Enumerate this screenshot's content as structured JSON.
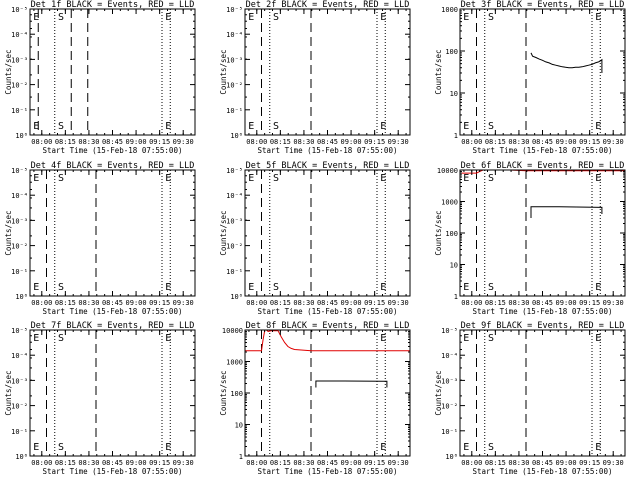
{
  "figure": {
    "background": "#ffffff",
    "x_tick_labels": [
      "08:00",
      "08:15",
      "08:30",
      "08:45",
      "09:00",
      "09:15",
      "09:30"
    ],
    "xlabel": "Start Time (15-Feb-18 07:55:00)",
    "ylabel": "Counts/sec",
    "colors": {
      "events": "#000000",
      "lld": "#e00000"
    }
  },
  "chart_data": [
    {
      "type": "line",
      "title": "Det 1f BLACK = Events, RED = LLD",
      "yscale": "log",
      "ylim": [
        1,
        10
      ],
      "xlim": [
        0,
        100
      ],
      "y_tick_labels": [
        "10⁰",
        "10⁻¹",
        "10⁻²",
        "10⁻³",
        "10⁻⁴",
        "10⁻⁵"
      ],
      "xlabel": "Start Time (15-Feb-18 07:55:00)",
      "ylabel": "Counts/sec",
      "dashed_x": [
        5,
        25,
        35
      ],
      "dotted_x": [
        15,
        80,
        85
      ],
      "markers": [
        {
          "text": "E",
          "x": 2
        },
        {
          "text": "S",
          "x": 17
        },
        {
          "text": "E",
          "x": 82
        }
      ],
      "series": []
    },
    {
      "type": "line",
      "title": "Det 2f BLACK = Events, RED = LLD",
      "yscale": "log",
      "ylim": [
        1,
        10
      ],
      "xlim": [
        0,
        100
      ],
      "y_tick_labels": [
        "10⁰",
        "10⁻¹",
        "10⁻²",
        "10⁻³",
        "10⁻⁴",
        "10⁻⁵"
      ],
      "xlabel": "Start Time (15-Feb-18 07:55:00)",
      "ylabel": "Counts/sec",
      "dashed_x": [
        10,
        40
      ],
      "dotted_x": [
        15,
        80,
        85
      ],
      "markers": [
        {
          "text": "E",
          "x": 2
        },
        {
          "text": "S",
          "x": 17
        },
        {
          "text": "E",
          "x": 82
        }
      ],
      "series": []
    },
    {
      "type": "line",
      "title": "Det 3f BLACK = Events, RED = LLD",
      "yscale": "log",
      "ylim": [
        1,
        1000
      ],
      "xlim": [
        0,
        100
      ],
      "y_tick_labels": [
        "1",
        "10",
        "100",
        "1000"
      ],
      "xlabel": "Start Time (15-Feb-18 07:55:00)",
      "ylabel": "Counts/sec",
      "dashed_x": [
        10,
        40
      ],
      "dotted_x": [
        15,
        80,
        85
      ],
      "markers": [
        {
          "text": "E",
          "x": 2
        },
        {
          "text": "S",
          "x": 17
        },
        {
          "text": "E",
          "x": 82
        }
      ],
      "series": [
        {
          "color": "#000000",
          "x": [
            43,
            44,
            46,
            48,
            50,
            52,
            54,
            56,
            58,
            60,
            62,
            64,
            66,
            68,
            70,
            72,
            74,
            76,
            78,
            80,
            82,
            84,
            85,
            86,
            86
          ],
          "y": [
            90,
            75,
            70,
            64,
            60,
            55,
            52,
            48,
            46,
            44,
            42,
            41,
            40,
            40,
            41,
            41,
            42,
            44,
            46,
            48,
            52,
            55,
            58,
            62,
            30
          ]
        }
      ]
    },
    {
      "type": "line",
      "title": "Det 4f BLACK = Events, RED = LLD",
      "yscale": "log",
      "ylim": [
        1,
        10
      ],
      "xlim": [
        0,
        100
      ],
      "y_tick_labels": [
        "10⁰",
        "10⁻¹",
        "10⁻²",
        "10⁻³",
        "10⁻⁴",
        "10⁻⁵"
      ],
      "xlabel": "Start Time (15-Feb-18 07:55:00)",
      "ylabel": "Counts/sec",
      "dashed_x": [
        10,
        40
      ],
      "dotted_x": [
        15,
        80,
        85
      ],
      "markers": [
        {
          "text": "E",
          "x": 2
        },
        {
          "text": "S",
          "x": 17
        },
        {
          "text": "E",
          "x": 82
        }
      ],
      "series": []
    },
    {
      "type": "line",
      "title": "Det 5f BLACK = Events, RED = LLD",
      "yscale": "log",
      "ylim": [
        1,
        10
      ],
      "xlim": [
        0,
        100
      ],
      "y_tick_labels": [
        "10⁰",
        "10⁻¹",
        "10⁻²",
        "10⁻³",
        "10⁻⁴",
        "10⁻⁵"
      ],
      "xlabel": "Start Time (15-Feb-18 07:55:00)",
      "ylabel": "Counts/sec",
      "dashed_x": [
        10,
        40
      ],
      "dotted_x": [
        15,
        80,
        85
      ],
      "markers": [
        {
          "text": "E",
          "x": 2
        },
        {
          "text": "S",
          "x": 17
        },
        {
          "text": "E",
          "x": 82
        }
      ],
      "series": []
    },
    {
      "type": "line",
      "title": "Det 6f BLACK = Events, RED = LLD",
      "yscale": "log",
      "ylim": [
        1,
        10000
      ],
      "xlim": [
        0,
        100
      ],
      "y_tick_labels": [
        "1",
        "10",
        "100",
        "1000",
        "10000"
      ],
      "xlabel": "Start Time (15-Feb-18 07:55:00)",
      "ylabel": "Counts/sec",
      "dashed_x": [
        10,
        40
      ],
      "dotted_x": [
        15,
        80,
        85
      ],
      "markers": [
        {
          "text": "E",
          "x": 2
        },
        {
          "text": "S",
          "x": 17
        },
        {
          "text": "E",
          "x": 82
        }
      ],
      "series": [
        {
          "color": "#e00000",
          "x": [
            0,
            10,
            12,
            14,
            15,
            22,
            25,
            30,
            40,
            60,
            80,
            90,
            100
          ],
          "y": [
            8000,
            8000,
            9000,
            12000,
            13000,
            12000,
            11000,
            10000,
            9500,
            9500,
            9500,
            9500,
            9500
          ]
        },
        {
          "color": "#000000",
          "x": [
            43,
            43,
            60,
            86,
            86
          ],
          "y": [
            300,
            680,
            680,
            650,
            400
          ]
        }
      ]
    },
    {
      "type": "line",
      "title": "Det 7f BLACK = Events, RED = LLD",
      "yscale": "log",
      "ylim": [
        1,
        10
      ],
      "xlim": [
        0,
        100
      ],
      "y_tick_labels": [
        "10⁰",
        "10⁻¹",
        "10⁻²",
        "10⁻³",
        "10⁻⁴",
        "10⁻⁵"
      ],
      "xlabel": "Start Time (15-Feb-18 07:55:00)",
      "ylabel": "Counts/sec",
      "dashed_x": [
        10,
        40
      ],
      "dotted_x": [
        15,
        80,
        85
      ],
      "markers": [
        {
          "text": "E",
          "x": 2
        },
        {
          "text": "S",
          "x": 17
        },
        {
          "text": "E",
          "x": 82
        }
      ],
      "series": []
    },
    {
      "type": "line",
      "title": "Det 8f BLACK = Events, RED = LLD",
      "yscale": "log",
      "ylim": [
        1,
        10000
      ],
      "xlim": [
        0,
        100
      ],
      "y_tick_labels": [
        "1",
        "10",
        "100",
        "1000",
        "10000"
      ],
      "xlabel": "Start Time (15-Feb-18 07:55:00)",
      "ylabel": "Counts/sec",
      "dashed_x": [
        10,
        40
      ],
      "dotted_x": [
        15,
        80,
        85
      ],
      "markers": [
        {
          "text": "E",
          "x": 82
        }
      ],
      "series": [
        {
          "color": "#e00000",
          "x": [
            0,
            10,
            11,
            12,
            13,
            14,
            16,
            20,
            22,
            24,
            26,
            28,
            30,
            35,
            40,
            60,
            80,
            100
          ],
          "y": [
            2200,
            2200,
            5000,
            10000,
            12000,
            9000,
            9500,
            9500,
            6000,
            4000,
            3000,
            2600,
            2400,
            2300,
            2200,
            2200,
            2200,
            2200
          ]
        },
        {
          "color": "#000000",
          "x": [
            43,
            43,
            60,
            86,
            86
          ],
          "y": [
            150,
            240,
            240,
            235,
            150
          ]
        }
      ]
    },
    {
      "type": "line",
      "title": "Det 9f BLACK = Events, RED = LLD",
      "yscale": "log",
      "ylim": [
        1,
        10
      ],
      "xlim": [
        0,
        100
      ],
      "y_tick_labels": [
        "10⁰",
        "10⁻¹",
        "10⁻²",
        "10⁻³",
        "10⁻⁴",
        "10⁻⁵"
      ],
      "xlabel": "Start Time (15-Feb-18 07:55:00)",
      "ylabel": "Counts/sec",
      "dashed_x": [
        10,
        40
      ],
      "dotted_x": [
        15,
        80,
        85
      ],
      "markers": [
        {
          "text": "E",
          "x": 2
        },
        {
          "text": "S",
          "x": 17
        },
        {
          "text": "E",
          "x": 82
        }
      ],
      "series": []
    }
  ]
}
